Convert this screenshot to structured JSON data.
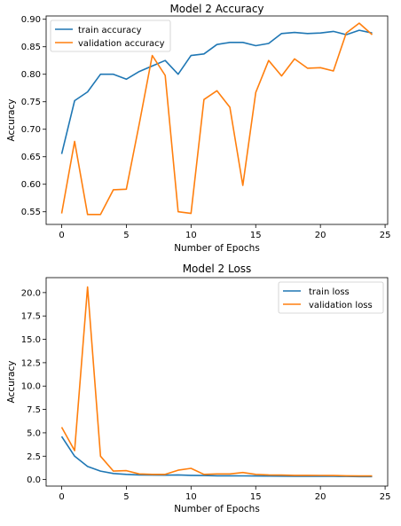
{
  "colors": {
    "train": "#1f77b4",
    "validation": "#ff7f0e"
  },
  "chart_data": [
    {
      "type": "line",
      "title": "Model 2 Accuracy",
      "xlabel": "Number of Epochs",
      "ylabel": "Accuracy",
      "xlim": [
        -1.2,
        25.2
      ],
      "ylim": [
        0.527,
        0.906
      ],
      "xticks": [
        0,
        5,
        10,
        15,
        20,
        25
      ],
      "yticks": [
        0.55,
        0.6,
        0.65,
        0.7,
        0.75,
        0.8,
        0.85,
        0.9
      ],
      "ytick_labels": [
        "0.55",
        "0.60",
        "0.65",
        "0.70",
        "0.75",
        "0.80",
        "0.85",
        "0.90"
      ],
      "legend_position": "upper-left",
      "x": [
        0,
        1,
        2,
        3,
        4,
        5,
        6,
        7,
        8,
        9,
        10,
        11,
        12,
        13,
        14,
        15,
        16,
        17,
        18,
        19,
        20,
        21,
        22,
        23,
        24
      ],
      "series": [
        {
          "name": "train accuracy",
          "color": "#1f77b4",
          "values": [
            0.655,
            0.752,
            0.768,
            0.8,
            0.8,
            0.791,
            0.805,
            0.815,
            0.825,
            0.8,
            0.834,
            0.837,
            0.854,
            0.858,
            0.858,
            0.852,
            0.856,
            0.874,
            0.876,
            0.874,
            0.875,
            0.878,
            0.872,
            0.88,
            0.875
          ]
        },
        {
          "name": "validation accuracy",
          "color": "#ff7f0e",
          "values": [
            0.547,
            0.678,
            0.545,
            0.545,
            0.59,
            0.591,
            0.71,
            0.834,
            0.798,
            0.55,
            0.547,
            0.754,
            0.77,
            0.74,
            0.598,
            0.767,
            0.825,
            0.797,
            0.828,
            0.811,
            0.812,
            0.806,
            0.875,
            0.893,
            0.872
          ]
        }
      ]
    },
    {
      "type": "line",
      "title": "Model 2 Loss",
      "xlabel": "Number of Epochs",
      "ylabel": "Accuracy",
      "xlim": [
        -1.2,
        25.2
      ],
      "ylim": [
        -0.7,
        21.6
      ],
      "xticks": [
        0,
        5,
        10,
        15,
        20,
        25
      ],
      "yticks": [
        0.0,
        2.5,
        5.0,
        7.5,
        10.0,
        12.5,
        15.0,
        17.5,
        20.0
      ],
      "ytick_labels": [
        "0.0",
        "2.5",
        "5.0",
        "7.5",
        "10.0",
        "12.5",
        "15.0",
        "17.5",
        "20.0"
      ],
      "legend_position": "upper-right",
      "x": [
        0,
        1,
        2,
        3,
        4,
        5,
        6,
        7,
        8,
        9,
        10,
        11,
        12,
        13,
        14,
        15,
        16,
        17,
        18,
        19,
        20,
        21,
        22,
        23,
        24
      ],
      "series": [
        {
          "name": "train loss",
          "color": "#1f77b4",
          "values": [
            4.6,
            2.5,
            1.4,
            0.9,
            0.65,
            0.55,
            0.5,
            0.48,
            0.47,
            0.5,
            0.45,
            0.43,
            0.4,
            0.4,
            0.39,
            0.38,
            0.37,
            0.36,
            0.35,
            0.35,
            0.34,
            0.34,
            0.33,
            0.32,
            0.32
          ]
        },
        {
          "name": "validation loss",
          "color": "#ff7f0e",
          "values": [
            5.6,
            3.1,
            20.6,
            2.5,
            0.9,
            0.95,
            0.6,
            0.55,
            0.55,
            1.0,
            1.2,
            0.55,
            0.6,
            0.6,
            0.75,
            0.55,
            0.5,
            0.48,
            0.45,
            0.45,
            0.44,
            0.43,
            0.4,
            0.38,
            0.38
          ]
        }
      ]
    }
  ]
}
